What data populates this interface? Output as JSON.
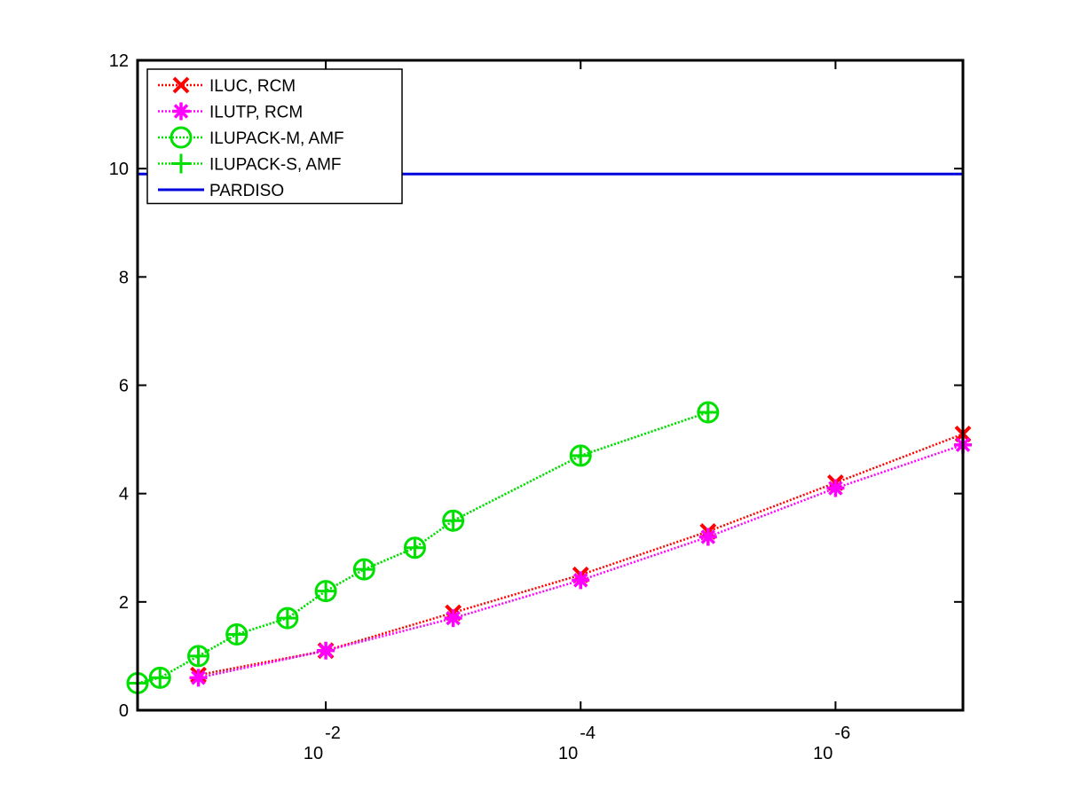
{
  "chart_data": {
    "type": "line",
    "title": "",
    "xlabel": "",
    "ylabel": "",
    "x_scale": "log-reversed",
    "xlim": [
      0.3,
      1e-07
    ],
    "ylim": [
      0,
      12
    ],
    "yticks": [
      0,
      2,
      4,
      6,
      8,
      10,
      12
    ],
    "xticks": [
      {
        "value": 0.01,
        "base": "10",
        "exponent": "-2"
      },
      {
        "value": 0.0001,
        "base": "10",
        "exponent": "-4"
      },
      {
        "value": 1e-06,
        "base": "10",
        "exponent": "-6"
      }
    ],
    "legend_position": "top-left",
    "grid": false,
    "series": [
      {
        "name": "ILUC, RCM",
        "color": "#ff0000",
        "marker": "x",
        "line": "dotted",
        "x": [
          0.1,
          0.01,
          0.001,
          0.0001,
          1e-05,
          1e-06,
          1e-07
        ],
        "y": [
          0.65,
          1.1,
          1.8,
          2.5,
          3.3,
          4.2,
          5.1
        ]
      },
      {
        "name": "ILUTP, RCM",
        "color": "#ff00ff",
        "marker": "asterisk",
        "line": "dotted",
        "x": [
          0.1,
          0.01,
          0.001,
          0.0001,
          1e-05,
          1e-06,
          1e-07
        ],
        "y": [
          0.6,
          1.1,
          1.7,
          2.4,
          3.2,
          4.1,
          4.9
        ]
      },
      {
        "name": "ILUPACK-M, AMF",
        "color": "#00e000",
        "marker": "circle",
        "line": "dotted",
        "x": [
          0.3,
          0.2,
          0.1,
          0.05,
          0.02,
          0.01,
          0.005,
          0.002,
          0.001,
          0.0001,
          1e-05
        ],
        "y": [
          0.5,
          0.6,
          1.0,
          1.4,
          1.7,
          2.2,
          2.6,
          3.0,
          3.5,
          4.7,
          5.5
        ]
      },
      {
        "name": "ILUPACK-S, AMF",
        "color": "#00e000",
        "marker": "plus",
        "line": "dotted",
        "x": [
          0.3,
          0.2,
          0.1,
          0.05,
          0.02,
          0.01,
          0.005,
          0.002,
          0.001,
          0.0001,
          1e-05
        ],
        "y": [
          0.5,
          0.6,
          1.0,
          1.4,
          1.7,
          2.2,
          2.6,
          3.0,
          3.5,
          4.7,
          5.5
        ]
      },
      {
        "name": "PARDISO",
        "color": "#0000dd",
        "marker": "none",
        "line": "solid",
        "x": [
          0.3,
          1e-07
        ],
        "y": [
          9.9,
          9.9
        ]
      }
    ]
  }
}
